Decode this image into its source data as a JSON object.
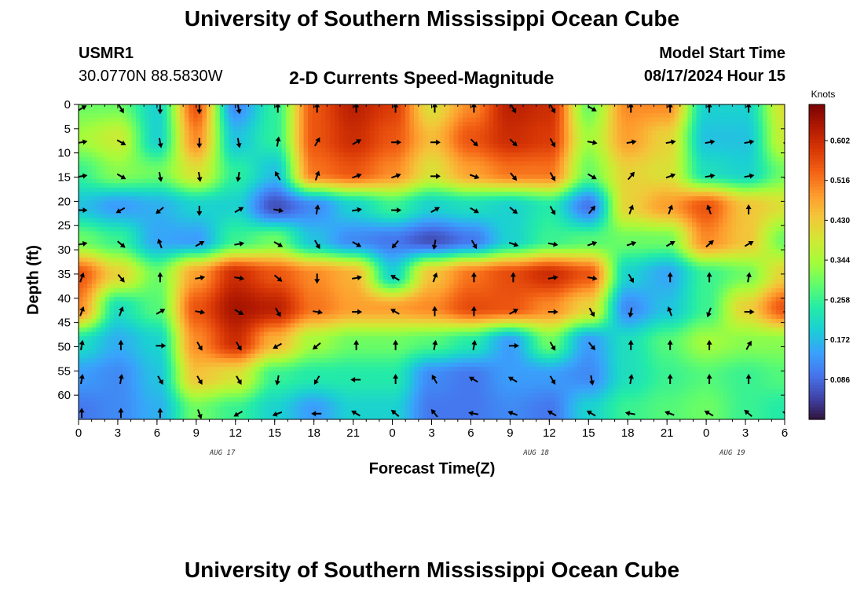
{
  "header": {
    "title": "University of Southern Mississippi Ocean Cube",
    "station": "USMR1",
    "coords": "30.0770N  88.5830W",
    "subtitle": "2-D Currents Speed-Magnitude",
    "model_label": "Model Start Time",
    "model_time": "08/17/2024 Hour 15"
  },
  "footer": {
    "title": "University of Southern Mississippi Ocean Cube"
  },
  "colors": {
    "palette": [
      "#30123b",
      "#4145ab",
      "#4675ed",
      "#39a2fc",
      "#1bcfd4",
      "#24eca6",
      "#61fc6c",
      "#a4fc3b",
      "#d1e834",
      "#f3c63a",
      "#fe9b2d",
      "#f36315",
      "#d93806",
      "#b11901",
      "#7a0403"
    ]
  },
  "chart_data": {
    "type": "heatmap",
    "xlabel": "Forecast Time(Z)",
    "ylabel": "Depth (ft)",
    "x_tick_labels": [
      "0",
      "3",
      "6",
      "9",
      "12",
      "15",
      "18",
      "21",
      "0",
      "3",
      "6",
      "9",
      "12",
      "15",
      "18",
      "21",
      "0",
      "3",
      "6"
    ],
    "x_hours": [
      0,
      3,
      6,
      9,
      12,
      15,
      18,
      21,
      24,
      27,
      30,
      33,
      36,
      39,
      42,
      45,
      48,
      51,
      54
    ],
    "xlim": [
      0,
      54
    ],
    "y_ticks": [
      0,
      5,
      10,
      15,
      20,
      25,
      30,
      35,
      40,
      45,
      50,
      55,
      60
    ],
    "ylim": [
      0,
      65
    ],
    "date_labels": [
      {
        "text": "AUG 17",
        "hour": 11
      },
      {
        "text": "AUG 18",
        "hour": 35
      },
      {
        "text": "AUG 19",
        "hour": 50
      }
    ],
    "colorbar": {
      "title": "Knots",
      "ticks": [
        0.602,
        0.516,
        0.43,
        0.344,
        0.258,
        0.172,
        0.086
      ],
      "tick_labels": [
        "0.602",
        "0.516",
        "0.430",
        "0.344",
        "0.258",
        "0.172",
        "0.086"
      ],
      "range": [
        0.0,
        0.68
      ]
    },
    "grid_hours": [
      0,
      3,
      6,
      9,
      12,
      15,
      18,
      21,
      24,
      27,
      30,
      33,
      36,
      39,
      42,
      45,
      48,
      51,
      54
    ],
    "grid_depths": [
      0,
      7,
      14,
      21,
      28,
      35,
      42,
      49,
      56,
      63
    ],
    "speed_knots": [
      [
        0.3,
        0.3,
        0.2,
        0.55,
        0.12,
        0.25,
        0.55,
        0.62,
        0.58,
        0.4,
        0.5,
        0.62,
        0.6,
        0.3,
        0.5,
        0.5,
        0.2,
        0.2,
        0.4
      ],
      [
        0.34,
        0.38,
        0.2,
        0.5,
        0.18,
        0.25,
        0.55,
        0.6,
        0.55,
        0.45,
        0.55,
        0.6,
        0.58,
        0.34,
        0.48,
        0.42,
        0.18,
        0.18,
        0.38
      ],
      [
        0.26,
        0.32,
        0.3,
        0.4,
        0.25,
        0.18,
        0.52,
        0.55,
        0.5,
        0.4,
        0.48,
        0.52,
        0.52,
        0.3,
        0.42,
        0.4,
        0.22,
        0.2,
        0.3
      ],
      [
        0.18,
        0.14,
        0.16,
        0.2,
        0.2,
        0.06,
        0.12,
        0.2,
        0.26,
        0.2,
        0.22,
        0.2,
        0.24,
        0.1,
        0.42,
        0.48,
        0.55,
        0.44,
        0.4
      ],
      [
        0.3,
        0.26,
        0.15,
        0.14,
        0.26,
        0.3,
        0.18,
        0.12,
        0.1,
        0.06,
        0.1,
        0.2,
        0.26,
        0.28,
        0.3,
        0.3,
        0.5,
        0.44,
        0.3
      ],
      [
        0.55,
        0.42,
        0.3,
        0.48,
        0.6,
        0.55,
        0.5,
        0.46,
        0.2,
        0.44,
        0.52,
        0.56,
        0.6,
        0.55,
        0.2,
        0.15,
        0.26,
        0.3,
        0.42
      ],
      [
        0.5,
        0.22,
        0.28,
        0.55,
        0.64,
        0.62,
        0.52,
        0.48,
        0.48,
        0.5,
        0.56,
        0.55,
        0.5,
        0.42,
        0.12,
        0.18,
        0.26,
        0.42,
        0.55
      ],
      [
        0.22,
        0.16,
        0.2,
        0.5,
        0.6,
        0.46,
        0.34,
        0.3,
        0.3,
        0.28,
        0.24,
        0.14,
        0.3,
        0.14,
        0.22,
        0.28,
        0.34,
        0.32,
        0.32
      ],
      [
        0.14,
        0.12,
        0.18,
        0.44,
        0.4,
        0.26,
        0.24,
        0.24,
        0.24,
        0.12,
        0.1,
        0.14,
        0.14,
        0.12,
        0.22,
        0.26,
        0.28,
        0.26,
        0.28
      ],
      [
        0.1,
        0.12,
        0.16,
        0.3,
        0.26,
        0.2,
        0.14,
        0.2,
        0.2,
        0.1,
        0.1,
        0.12,
        0.1,
        0.2,
        0.26,
        0.28,
        0.3,
        0.26,
        0.24
      ]
    ],
    "vectors": {
      "hours": [
        0,
        3,
        6,
        9,
        12,
        15,
        18,
        21,
        24,
        27,
        30,
        33,
        36,
        39,
        42,
        45,
        48,
        51,
        54
      ],
      "depths": [
        0,
        7,
        14,
        21,
        28,
        35,
        42,
        49,
        56,
        63
      ],
      "angles_deg": [
        [
          60,
          150,
          180,
          180,
          170,
          0,
          0,
          0,
          0,
          0,
          0,
          150,
          150,
          120,
          0,
          0,
          0,
          0,
          0
        ],
        [
          80,
          120,
          170,
          180,
          170,
          10,
          30,
          60,
          90,
          90,
          135,
          135,
          150,
          100,
          80,
          80,
          80,
          80,
          80
        ],
        [
          80,
          120,
          170,
          170,
          190,
          330,
          20,
          70,
          70,
          90,
          110,
          140,
          150,
          120,
          40,
          70,
          80,
          80,
          70
        ],
        [
          90,
          240,
          230,
          180,
          60,
          100,
          10,
          80,
          90,
          60,
          120,
          130,
          150,
          40,
          20,
          20,
          340,
          0,
          0
        ],
        [
          80,
          130,
          340,
          60,
          80,
          120,
          150,
          120,
          220,
          190,
          150,
          110,
          100,
          70,
          70,
          60,
          50,
          60,
          60
        ],
        [
          20,
          140,
          0,
          80,
          100,
          130,
          180,
          80,
          300,
          20,
          0,
          0,
          80,
          100,
          150,
          0,
          0,
          10,
          0
        ],
        [
          20,
          20,
          60,
          100,
          120,
          150,
          100,
          90,
          300,
          0,
          0,
          60,
          90,
          150,
          190,
          340,
          200,
          90,
          90
        ],
        [
          10,
          0,
          90,
          150,
          150,
          240,
          230,
          0,
          0,
          10,
          10,
          90,
          150,
          140,
          0,
          0,
          0,
          30,
          30
        ],
        [
          10,
          10,
          150,
          150,
          150,
          190,
          210,
          270,
          0,
          330,
          300,
          300,
          150,
          170,
          10,
          0,
          0,
          0,
          0
        ],
        [
          0,
          0,
          0,
          160,
          240,
          250,
          270,
          300,
          310,
          320,
          280,
          290,
          300,
          300,
          280,
          290,
          300,
          310,
          290
        ]
      ]
    }
  }
}
